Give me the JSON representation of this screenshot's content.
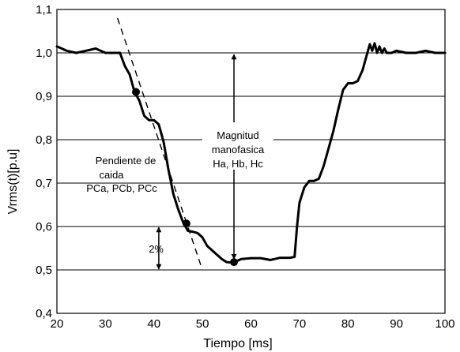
{
  "chart_data": {
    "type": "line",
    "xlabel": "Tiempo [ms]",
    "ylabel": "Vrms(t)[p.u]",
    "xlim": [
      20,
      100
    ],
    "ylim": [
      0.4,
      1.1
    ],
    "x_ticks": [
      "20",
      "30",
      "40",
      "50",
      "60",
      "70",
      "80",
      "90",
      "100"
    ],
    "y_ticks": [
      "0,4",
      "0,5",
      "0,6",
      "0,7",
      "0,8",
      "0,9",
      "1,0",
      "1,1"
    ],
    "grid": "horizontal",
    "series": [
      {
        "style": "solid",
        "x": [
          20,
          22,
          24,
          26,
          28,
          30,
          32,
          33,
          34,
          35,
          36,
          37,
          38,
          39,
          40,
          41,
          42,
          43,
          44,
          45,
          46,
          47,
          48,
          49,
          50,
          51,
          52,
          53,
          54,
          55,
          56,
          57,
          58,
          60,
          62,
          64,
          66,
          68,
          69,
          69.5,
          70,
          71,
          72,
          73,
          74,
          75,
          76,
          77,
          78,
          79,
          80,
          81,
          82,
          83,
          84,
          84.5,
          85,
          85.5,
          86,
          86.5,
          87,
          87.5,
          88,
          89,
          90,
          92,
          94,
          96,
          98,
          100
        ],
        "y": [
          1.015,
          1.005,
          1.0,
          1.005,
          1.01,
          1.0,
          1.0,
          1.0,
          0.97,
          0.95,
          0.91,
          0.89,
          0.855,
          0.845,
          0.845,
          0.835,
          0.795,
          0.73,
          0.675,
          0.64,
          0.61,
          0.59,
          0.588,
          0.585,
          0.575,
          0.555,
          0.545,
          0.535,
          0.525,
          0.518,
          0.517,
          0.52,
          0.525,
          0.527,
          0.527,
          0.523,
          0.528,
          0.528,
          0.53,
          0.6,
          0.655,
          0.69,
          0.705,
          0.705,
          0.71,
          0.74,
          0.78,
          0.82,
          0.87,
          0.915,
          0.93,
          0.93,
          0.935,
          0.96,
          1.0,
          1.02,
          1.005,
          1.022,
          1.0,
          1.015,
          1.0,
          1.01,
          1.0,
          1.0,
          1.005,
          1.0,
          1.0,
          1.005,
          1.0,
          1.0
        ]
      },
      {
        "style": "dashed",
        "x": [
          32.5,
          50
        ],
        "y": [
          1.08,
          0.5
        ]
      }
    ],
    "points": [
      {
        "x": 36.3,
        "y": 0.91
      },
      {
        "x": 46.7,
        "y": 0.607
      },
      {
        "x": 56.5,
        "y": 0.518
      }
    ],
    "annotations": {
      "magnitud": {
        "lines": [
          "Magnitud",
          "manofasica",
          "Ha, Hb, Hc"
        ],
        "x": 56.5,
        "y_from": 0.518,
        "y_to": 1.0
      },
      "pendiente": {
        "lines": [
          "Pendiente de",
          "caida",
          "PCa, PCb, PCc"
        ]
      },
      "delta": {
        "label": "2%",
        "x": 41,
        "y_from": 0.6,
        "y_to": 0.5
      }
    }
  }
}
